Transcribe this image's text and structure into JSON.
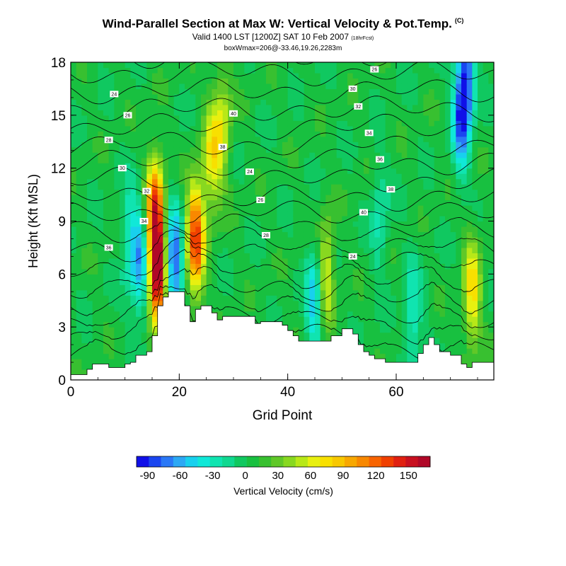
{
  "header": {
    "title": "Wind-Parallel Section at Max W: Vertical Velocity & Pot.Temp.",
    "copyright": "(C)",
    "valid": "Valid 1400 LST [1200Z] SAT 10 Feb 2007",
    "forecast": "(18hrFcst)",
    "boxinfo": "boxWmax=206@-33.46,19.26,2283m"
  },
  "chart_data": {
    "type": "heatmap",
    "xlabel": "Grid Point",
    "ylabel": "Height (Kft MSL)",
    "xlim": [
      0,
      78
    ],
    "ylim": [
      0,
      18
    ],
    "xticks": [
      0,
      20,
      40,
      60
    ],
    "yticks": [
      0,
      3,
      6,
      9,
      12,
      15,
      18
    ],
    "colorbar": {
      "label": "Vertical Velocity (cm/s)",
      "ticks": [
        -90,
        -60,
        -30,
        0,
        30,
        60,
        90,
        120,
        150
      ],
      "range": [
        -100,
        170
      ],
      "colors": [
        "#1010e8",
        "#1a46f0",
        "#2a78f6",
        "#2ca8f4",
        "#18d0ee",
        "#10e8d8",
        "#10e4b0",
        "#10d890",
        "#10c860",
        "#18c040",
        "#38c030",
        "#60c828",
        "#88d820",
        "#b8e818",
        "#e8f010",
        "#f8e000",
        "#f8c800",
        "#f8a800",
        "#f88800",
        "#f86400",
        "#f04000",
        "#e02010",
        "#c81020",
        "#b00828"
      ]
    },
    "terrain": [
      [
        0,
        0.3
      ],
      [
        2,
        0.3
      ],
      [
        3,
        0.6
      ],
      [
        4,
        0.9
      ],
      [
        6,
        0.9
      ],
      [
        7,
        0.7
      ],
      [
        9,
        0.7
      ],
      [
        10,
        0.9
      ],
      [
        11,
        1.0
      ],
      [
        12,
        1.4
      ],
      [
        13,
        1.4
      ],
      [
        14,
        1.6
      ],
      [
        15,
        2.5
      ],
      [
        16,
        4.2
      ],
      [
        17,
        4.7
      ],
      [
        18,
        5.0
      ],
      [
        20,
        5.0
      ],
      [
        21,
        4.2
      ],
      [
        22,
        3.3
      ],
      [
        23,
        4.0
      ],
      [
        24,
        4.2
      ],
      [
        26,
        3.8
      ],
      [
        27,
        3.4
      ],
      [
        28,
        3.6
      ],
      [
        33,
        3.6
      ],
      [
        34,
        3.2
      ],
      [
        35,
        3.3
      ],
      [
        38,
        3.3
      ],
      [
        39,
        3.1
      ],
      [
        40,
        2.8
      ],
      [
        41,
        2.5
      ],
      [
        42,
        2.2
      ],
      [
        47,
        2.2
      ],
      [
        48,
        2.5
      ],
      [
        50,
        2.9
      ],
      [
        52,
        2.6
      ],
      [
        53,
        2.0
      ],
      [
        54,
        1.6
      ],
      [
        55,
        1.4
      ],
      [
        56,
        1.2
      ],
      [
        58,
        1.0
      ],
      [
        62,
        1.0
      ],
      [
        64,
        1.5
      ],
      [
        65,
        2.0
      ],
      [
        66,
        2.4
      ],
      [
        67,
        2.0
      ],
      [
        68,
        1.6
      ],
      [
        70,
        1.4
      ],
      [
        72,
        0.9
      ],
      [
        73,
        0.7
      ],
      [
        74,
        1.0
      ],
      [
        78,
        1.0
      ]
    ],
    "w_features": [
      {
        "x": 16,
        "y": 6.0,
        "w": 150
      },
      {
        "x": 23,
        "y": 8.0,
        "w": 130
      },
      {
        "x": 15.5,
        "y": 9.5,
        "w": 120
      },
      {
        "x": 26,
        "y": 12.5,
        "w": 60
      },
      {
        "x": 28,
        "y": 14.5,
        "w": 50
      },
      {
        "x": 45,
        "y": 4.5,
        "w": -60
      },
      {
        "x": 19,
        "y": 6.5,
        "w": -90
      },
      {
        "x": 13,
        "y": 6.5,
        "w": -60
      },
      {
        "x": 11,
        "y": 8.0,
        "w": -40
      },
      {
        "x": 72,
        "y": 15.0,
        "w": -80
      },
      {
        "x": 73,
        "y": 17.5,
        "w": -70
      },
      {
        "x": 47,
        "y": 6.0,
        "w": 60
      },
      {
        "x": 74,
        "y": 5.0,
        "w": 70
      },
      {
        "x": 63,
        "y": 3.5,
        "w": -40
      },
      {
        "x": 57,
        "y": 9.0,
        "w": -30
      }
    ],
    "theta_levels": [
      290,
      292,
      294,
      296,
      298,
      300,
      302,
      304,
      306,
      308,
      310,
      312,
      314,
      316,
      318,
      320,
      322,
      324
    ],
    "theta_labels": [
      "24",
      "26",
      "28",
      "30",
      "32",
      "34",
      "36",
      "38",
      "40"
    ]
  }
}
